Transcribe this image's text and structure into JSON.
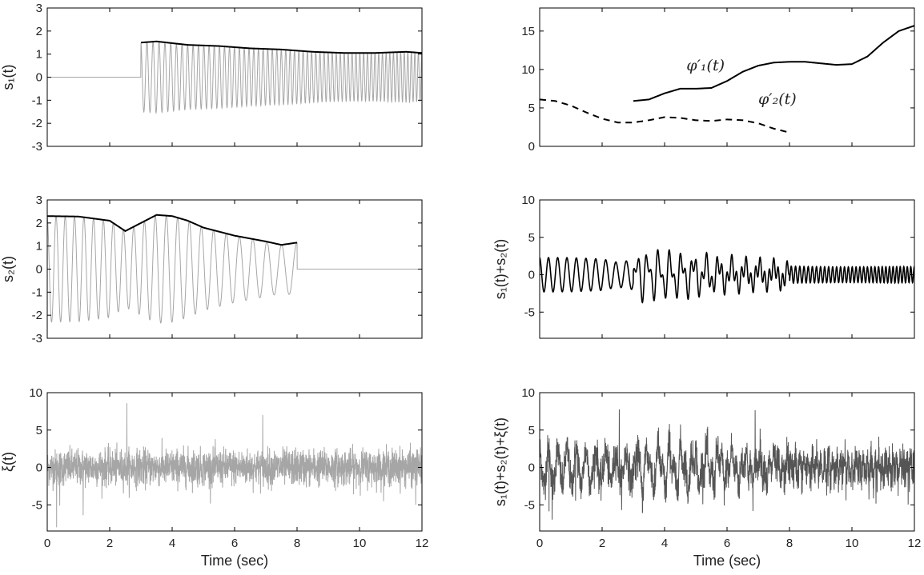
{
  "chart_data": [
    {
      "type": "line",
      "panel": "s1",
      "ylabel": "s₁(t)",
      "xlim": [
        0,
        12
      ],
      "ylim": [
        -3,
        3
      ],
      "xticks": [],
      "yticks": [
        -3,
        -2,
        -1,
        0,
        1,
        2,
        3
      ],
      "series": [
        {
          "kind": "chirp",
          "color": "#a6a6a6",
          "t_start": 3,
          "t_end": 12,
          "envelope_t": [
            3,
            3.5,
            4.5,
            5.5,
            6.5,
            7.5,
            8.5,
            9.5,
            10.5,
            11.5,
            12
          ],
          "envelope_a": [
            1.5,
            1.55,
            1.4,
            1.35,
            1.25,
            1.2,
            1.1,
            1.05,
            1.05,
            1.1,
            1.05
          ],
          "freq_hz": [
            5,
            9
          ]
        },
        {
          "kind": "envelope",
          "color": "#000000",
          "x": [
            3,
            3.5,
            4.5,
            5.5,
            6.5,
            7.5,
            8.5,
            9.5,
            10.5,
            11.5,
            12
          ],
          "y": [
            1.5,
            1.55,
            1.4,
            1.35,
            1.25,
            1.2,
            1.1,
            1.05,
            1.05,
            1.1,
            1.05
          ]
        }
      ]
    },
    {
      "type": "line",
      "panel": "phase-derivatives",
      "xlim": [
        0,
        12
      ],
      "ylim": [
        0,
        18
      ],
      "xticks": [],
      "yticks": [
        0,
        5,
        10,
        15
      ],
      "series": [
        {
          "name": "φ′₁(t)",
          "style": "solid",
          "color": "#000000",
          "x": [
            3,
            3.5,
            4,
            4.5,
            5,
            5.5,
            6,
            6.5,
            7,
            7.5,
            8,
            8.5,
            9,
            9.5,
            10,
            10.5,
            11,
            11.5,
            12
          ],
          "y": [
            5.9,
            6.1,
            6.9,
            7.5,
            7.5,
            7.6,
            8.5,
            9.7,
            10.5,
            10.9,
            11.0,
            11.0,
            10.8,
            10.6,
            10.7,
            11.7,
            13.5,
            15.0,
            15.7
          ]
        },
        {
          "name": "φ′₂(t)",
          "style": "dashed",
          "color": "#000000",
          "x": [
            0,
            0.5,
            1,
            1.5,
            2,
            2.5,
            3,
            3.5,
            4,
            4.5,
            5,
            5.5,
            6,
            6.5,
            7,
            7.5,
            8
          ],
          "y": [
            6.1,
            5.9,
            5.3,
            4.4,
            3.6,
            3.1,
            3.1,
            3.4,
            3.8,
            3.7,
            3.4,
            3.3,
            3.5,
            3.4,
            3.0,
            2.3,
            1.8
          ]
        }
      ],
      "annotations": [
        {
          "text": "φ′₁(t)",
          "x": 4.7,
          "y": 9.9
        },
        {
          "text": "φ′₂(t)",
          "x": 7.0,
          "y": 5.5
        }
      ]
    },
    {
      "type": "line",
      "panel": "s2",
      "ylabel": "s₂(t)",
      "xlim": [
        0,
        12
      ],
      "ylim": [
        -3,
        3
      ],
      "xticks": [],
      "yticks": [
        -3,
        -2,
        -1,
        0,
        1,
        2,
        3
      ],
      "series": [
        {
          "kind": "chirp",
          "color": "#a6a6a6",
          "t_start": 0,
          "t_end": 8,
          "envelope_t": [
            0,
            1,
            2,
            2.5,
            3,
            3.5,
            4,
            4.5,
            5,
            6,
            7,
            7.5,
            8
          ],
          "envelope_a": [
            2.3,
            2.28,
            2.1,
            1.65,
            2.0,
            2.35,
            2.3,
            2.1,
            1.8,
            1.45,
            1.2,
            1.05,
            1.15
          ],
          "freq_hz": [
            3.5,
            2.0
          ]
        },
        {
          "kind": "envelope",
          "color": "#000000",
          "x": [
            0,
            1,
            2,
            2.5,
            3,
            3.5,
            4,
            4.5,
            5,
            6,
            7,
            7.5,
            8
          ],
          "y": [
            2.3,
            2.28,
            2.1,
            1.65,
            2.0,
            2.35,
            2.3,
            2.1,
            1.8,
            1.45,
            1.2,
            1.05,
            1.15
          ]
        }
      ]
    },
    {
      "type": "line",
      "panel": "s1-plus-s2",
      "ylabel": "s₁(t)+s₂(t)",
      "xlim": [
        0,
        12
      ],
      "ylim": [
        -8.5,
        10
      ],
      "xticks": [],
      "yticks": [
        -5,
        0,
        5,
        10
      ],
      "series": [
        {
          "kind": "sum",
          "color": "#000000",
          "of": [
            "s1",
            "s2"
          ]
        }
      ]
    },
    {
      "type": "line",
      "panel": "noise",
      "ylabel": "ξ(t)",
      "xlabel": "Time (sec)",
      "xlim": [
        0,
        12
      ],
      "ylim": [
        -8.5,
        10
      ],
      "xticks": [
        0,
        2,
        4,
        6,
        8,
        10,
        12
      ],
      "yticks": [
        -5,
        0,
        5,
        10
      ],
      "series": [
        {
          "kind": "noise",
          "color": "#a6a6a6",
          "std": 1.2,
          "spikes": [
            {
              "x": 2.55,
              "y": 8.6
            },
            {
              "x": 6.9,
              "y": 7.0
            },
            {
              "x": 1.15,
              "y": -6.4
            },
            {
              "x": 0.3,
              "y": -8.0
            },
            {
              "x": 11.8,
              "y": -5.0
            },
            {
              "x": 0.4,
              "y": -5.1
            }
          ]
        }
      ]
    },
    {
      "type": "line",
      "panel": "total",
      "ylabel": "s₁(t)+s₂(t)+ξ(t)",
      "xlabel": "Time (sec)",
      "xlim": [
        0,
        12
      ],
      "ylim": [
        -8.5,
        10
      ],
      "xticks": [
        0,
        2,
        4,
        6,
        8,
        10,
        12
      ],
      "yticks": [
        -5,
        0,
        5,
        10
      ],
      "series": [
        {
          "kind": "sum",
          "color": "#555555",
          "of": [
            "s1",
            "s2",
            "noise"
          ]
        }
      ]
    }
  ]
}
